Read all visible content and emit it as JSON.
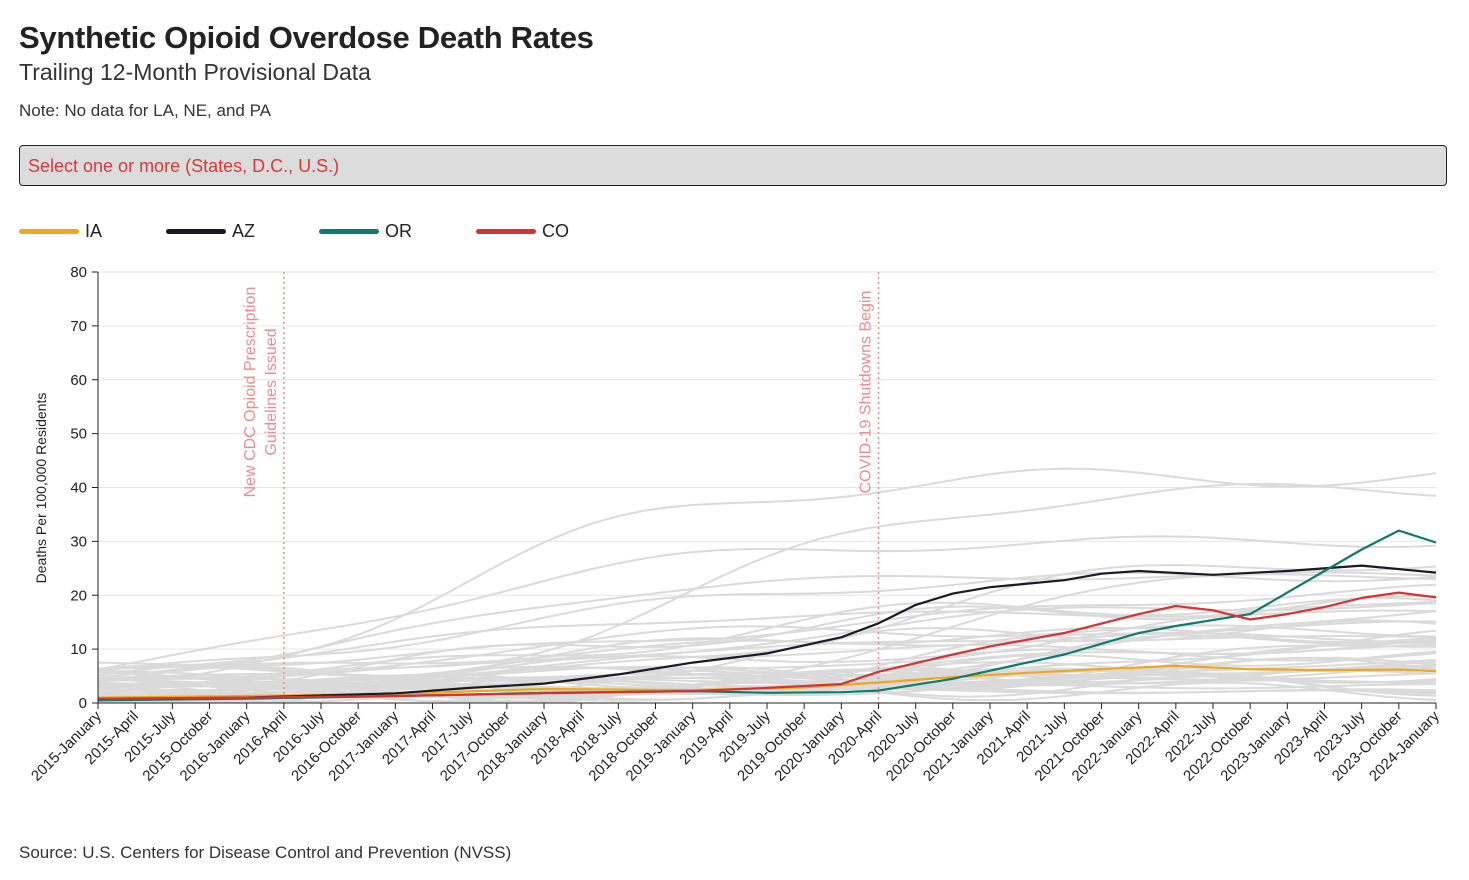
{
  "header": {
    "title": "Synthetic Opioid Overdose Death Rates",
    "subtitle": "Trailing 12-Month Provisional Data",
    "note": "Note: No data for LA, NE, and PA"
  },
  "selector": {
    "placeholder": "Select one or more (States, D.C., U.S.)"
  },
  "footer": {
    "source": "Source: U.S. Centers for Disease Control and Prevention (NVSS)"
  },
  "chart_data": {
    "type": "line",
    "ylabel": "Deaths Per 100,000 Residents",
    "ylim": [
      0,
      80
    ],
    "yticks": [
      0,
      10,
      20,
      30,
      40,
      50,
      60,
      70,
      80
    ],
    "x_start": "2015-January",
    "x_end": "2024-January",
    "x_tick_labels": [
      "2015-January",
      "2015-April",
      "2015-July",
      "2015-October",
      "2016-January",
      "2016-April",
      "2016-July",
      "2016-October",
      "2017-January",
      "2017-April",
      "2017-July",
      "2017-October",
      "2018-January",
      "2018-April",
      "2018-July",
      "2018-October",
      "2019-January",
      "2019-April",
      "2019-July",
      "2019-October",
      "2020-January",
      "2020-April",
      "2020-July",
      "2020-October",
      "2021-January",
      "2021-April",
      "2021-July",
      "2021-October",
      "2022-January",
      "2022-April",
      "2022-July",
      "2022-October",
      "2023-January",
      "2023-April",
      "2023-July",
      "2023-October",
      "2024-January"
    ],
    "grid": "horizontal",
    "legend_position": "top-left",
    "annotations": [
      {
        "x": "2016-April",
        "lines": [
          "New CDC Opioid Prescription",
          "Guidelines Issued"
        ],
        "color": "#ee8c8c"
      },
      {
        "x": "2020-April",
        "lines": [
          "COVID-19 Shutdowns Begin"
        ],
        "color": "#ee8c8c"
      }
    ],
    "series": [
      {
        "name": "IA",
        "color": "#f0a71f",
        "x": [
          "2015-January",
          "2016-January",
          "2017-January",
          "2018-January",
          "2019-January",
          "2019-October",
          "2020-April",
          "2020-October",
          "2021-April",
          "2021-October",
          "2022-April",
          "2022-October",
          "2023-April",
          "2023-October",
          "2024-January"
        ],
        "values": [
          1.0,
          1.3,
          1.7,
          2.6,
          2.4,
          2.9,
          3.8,
          4.8,
          5.6,
          6.3,
          6.9,
          6.3,
          6.1,
          6.2,
          5.9
        ]
      },
      {
        "name": "AZ",
        "color": "#1a1a22",
        "x": [
          "2015-January",
          "2016-January",
          "2017-January",
          "2017-July",
          "2018-January",
          "2018-July",
          "2019-January",
          "2019-July",
          "2020-January",
          "2020-April",
          "2020-July",
          "2020-October",
          "2021-January",
          "2021-July",
          "2021-October",
          "2022-January",
          "2022-July",
          "2023-January",
          "2023-July",
          "2024-January"
        ],
        "values": [
          0.7,
          1.0,
          1.8,
          2.8,
          3.6,
          5.3,
          7.5,
          9.2,
          12.2,
          14.8,
          18.2,
          20.3,
          21.5,
          22.8,
          24.0,
          24.5,
          23.8,
          24.5,
          25.5,
          24.2
        ]
      },
      {
        "name": "OR",
        "color": "#0e7a6e",
        "x": [
          "2015-January",
          "2016-January",
          "2017-January",
          "2018-January",
          "2019-January",
          "2019-July",
          "2020-January",
          "2020-April",
          "2020-October",
          "2021-January",
          "2021-July",
          "2022-January",
          "2022-April",
          "2022-October",
          "2023-January",
          "2023-April",
          "2023-July",
          "2023-October",
          "2024-January"
        ],
        "values": [
          0.5,
          0.8,
          1.3,
          1.9,
          2.2,
          1.9,
          2.0,
          2.3,
          4.5,
          6.0,
          9.0,
          13.0,
          14.3,
          16.5,
          20.5,
          24.5,
          28.5,
          32.0,
          29.8
        ]
      },
      {
        "name": "CO",
        "color": "#d33434",
        "x": [
          "2015-January",
          "2016-January",
          "2017-January",
          "2018-January",
          "2019-January",
          "2019-July",
          "2020-January",
          "2020-April",
          "2020-October",
          "2021-January",
          "2021-July",
          "2022-January",
          "2022-April",
          "2022-July",
          "2022-October",
          "2023-January",
          "2023-April",
          "2023-July",
          "2023-October",
          "2024-January"
        ],
        "values": [
          0.8,
          1.0,
          1.3,
          1.8,
          2.2,
          2.8,
          3.5,
          5.8,
          9.0,
          10.5,
          13.0,
          16.5,
          18.0,
          17.2,
          15.5,
          16.5,
          17.8,
          19.5,
          20.5,
          19.6
        ]
      }
    ]
  }
}
